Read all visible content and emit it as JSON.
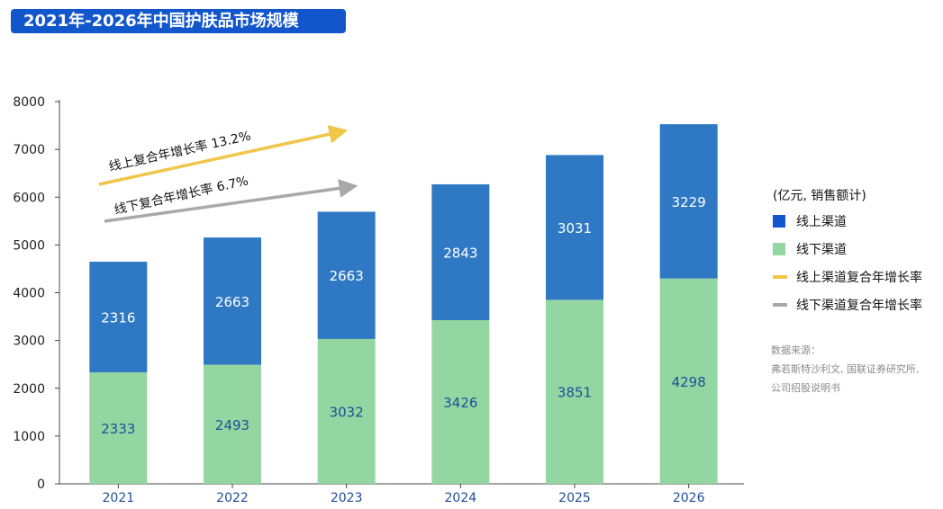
{
  "chart_data": {
    "type": "bar",
    "stacked": true,
    "title": "2021年-2026年中国护肤品市场规模",
    "unit": "(亿元, 销售额计)",
    "categories": [
      "2021",
      "2022",
      "2023",
      "2024",
      "2025",
      "2026"
    ],
    "series": [
      {
        "name": "线下渠道",
        "color": "#94d6a2",
        "values": [
          2333,
          2493,
          3032,
          3426,
          3851,
          4298
        ]
      },
      {
        "name": "线上渠道",
        "color": "#2f78c4",
        "values": [
          2316,
          2663,
          2663,
          2843,
          3031,
          3229
        ]
      }
    ],
    "ylim": [
      0,
      8000
    ],
    "yticks": [
      0,
      1000,
      2000,
      3000,
      4000,
      5000,
      6000,
      7000,
      8000
    ],
    "grid": false,
    "legend_position": "right",
    "annotations": [
      {
        "name": "线上渠道复合年增长率",
        "label": "线上复合年增长率 13.2%",
        "color": "#f0c64a"
      },
      {
        "name": "线下渠道复合年增长率",
        "label": "线下复合年增长率 6.7%",
        "color": "#a9a9a9"
      }
    ],
    "label_colors": {
      "bottom": "#1f4e99",
      "top": "#ffffff"
    }
  },
  "legend": {
    "unit": "(亿元, 销售额计)",
    "items": [
      {
        "label": "线上渠道",
        "color": "#1256cc",
        "kind": "box"
      },
      {
        "label": "线下渠道",
        "color": "#94d6a2",
        "kind": "box"
      },
      {
        "label": "线上渠道复合年增长率",
        "color": "#f0c64a",
        "kind": "line"
      },
      {
        "label": "线下渠道复合年增长率",
        "color": "#a9a9a9",
        "kind": "line"
      }
    ]
  },
  "source": {
    "lines": [
      "数据来源：",
      "弗若斯特沙利文, 国联证券研究所,",
      "公司招股说明书"
    ]
  },
  "colors": {
    "title_bg": "#1256cc",
    "axis": "#444444",
    "xtick": "#1f4e99"
  }
}
